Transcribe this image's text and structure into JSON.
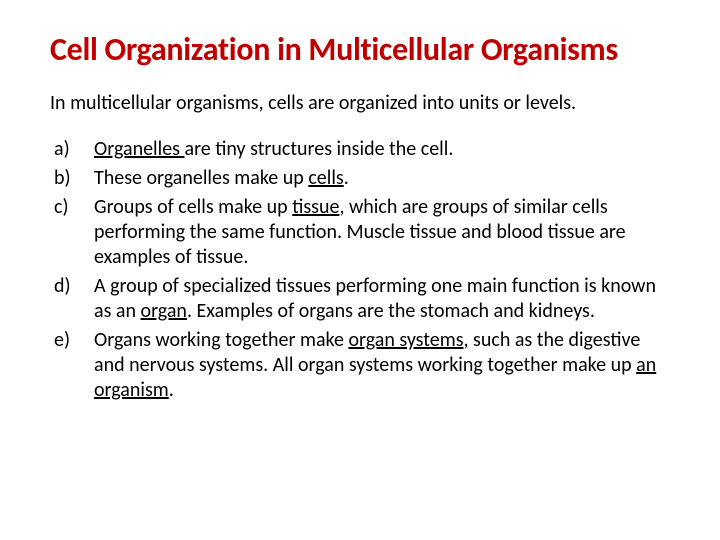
{
  "title": {
    "text": "Cell Organization in Multicellular Organisms",
    "color": "#c00000"
  },
  "intro": "In multicellular organisms, cells are organized into units or levels.",
  "items": [
    {
      "marker": "a)",
      "segments": [
        {
          "text": "Organelles ",
          "underline": true
        },
        {
          "text": "are tiny structures inside the cell.",
          "underline": false
        }
      ]
    },
    {
      "marker": "b)",
      "segments": [
        {
          "text": "These organelles make up ",
          "underline": false
        },
        {
          "text": "cells",
          "underline": true
        },
        {
          "text": ".",
          "underline": false
        }
      ]
    },
    {
      "marker": "c)",
      "segments": [
        {
          "text": "Groups of cells make up ",
          "underline": false
        },
        {
          "text": "tissue",
          "underline": true
        },
        {
          "text": ", which are groups of similar cells performing the same function.  Muscle tissue and blood tissue are examples of tissue.",
          "underline": false
        }
      ]
    },
    {
      "marker": "d)",
      "segments": [
        {
          "text": "A group of specialized tissues performing one main function is known as an ",
          "underline": false
        },
        {
          "text": "organ",
          "underline": true
        },
        {
          "text": ".  Examples of organs are the stomach and kidneys.",
          "underline": false
        }
      ]
    },
    {
      "marker": "e)",
      "segments": [
        {
          "text": "Organs working together make ",
          "underline": false
        },
        {
          "text": "organ systems",
          "underline": true
        },
        {
          "text": ", such as the digestive and nervous systems.  All organ systems working together make up ",
          "underline": false
        },
        {
          "text": "an organism",
          "underline": true
        },
        {
          "text": ".",
          "underline": false
        }
      ]
    }
  ],
  "colors": {
    "background": "#ffffff",
    "body_text": "#000000"
  },
  "typography": {
    "title_fontsize": 32,
    "body_fontsize": 20,
    "font_family": "Calibri"
  }
}
